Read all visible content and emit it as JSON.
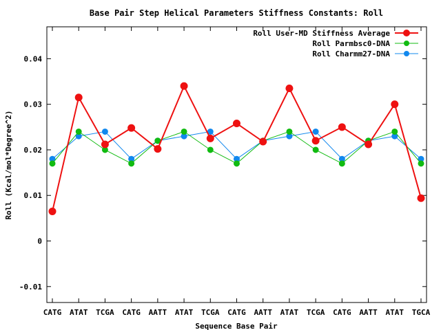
{
  "chart_data": {
    "type": "line",
    "title": "Base Pair Step Helical Parameters Stiffness Constants: Roll",
    "xlabel": "Sequence Base Pair",
    "ylabel": "Roll (Kcal/mol*Degree^2)",
    "ylim": [
      -0.0135,
      0.047
    ],
    "yticks": [
      -0.01,
      0,
      0.01,
      0.02,
      0.03,
      0.04
    ],
    "ytick_labels": [
      "-0.01",
      "0",
      "0.01",
      "0.02",
      "0.03",
      "0.04"
    ],
    "categories": [
      "CATG",
      "ATAT",
      "TCGA",
      "CATG",
      "AATT",
      "ATAT",
      "TCGA",
      "CATG",
      "AATT",
      "ATAT",
      "TCGA",
      "CATG",
      "AATT",
      "ATAT",
      "TGCA"
    ],
    "grid": false,
    "legend_position": "top-right",
    "series": [
      {
        "name": "Roll User-MD Stiffness Average",
        "color": "#ee1111",
        "values": [
          0.0065,
          0.0315,
          0.0212,
          0.0248,
          0.0202,
          0.034,
          0.0225,
          0.0258,
          0.0218,
          0.0335,
          0.022,
          0.025,
          0.0212,
          0.03,
          0.0094
        ]
      },
      {
        "name": "Roll Parmbsc0-DNA",
        "color": "#11bb11",
        "values": [
          0.017,
          0.024,
          0.02,
          0.017,
          0.022,
          0.024,
          0.02,
          0.017,
          0.022,
          0.024,
          0.02,
          0.017,
          0.022,
          0.024,
          0.017
        ]
      },
      {
        "name": "Roll Charmm27-DNA",
        "color": "#1188ee",
        "values": [
          0.018,
          0.023,
          0.024,
          0.018,
          0.022,
          0.023,
          0.024,
          0.018,
          0.022,
          0.023,
          0.024,
          0.018,
          0.022,
          0.023,
          0.018
        ]
      }
    ]
  }
}
